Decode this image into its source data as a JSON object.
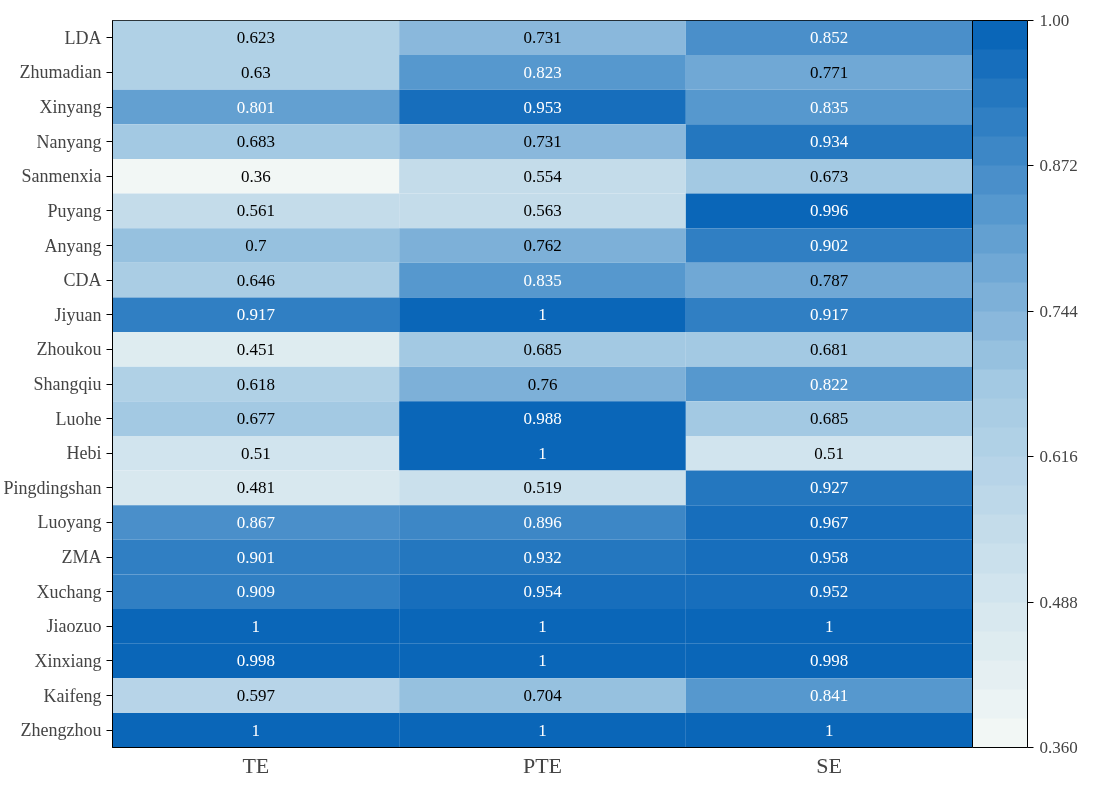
{
  "chart_data": {
    "type": "heatmap",
    "categories": [
      "TE",
      "PTE",
      "SE"
    ],
    "y_categories": [
      "LDA",
      "Zhumadian",
      "Xinyang",
      "Nanyang",
      "Sanmenxia",
      "Puyang",
      "Anyang",
      "CDA",
      "Jiyuan",
      "Zhoukou",
      "Shangqiu",
      "Luohe",
      "Hebi",
      "Pingdingshan",
      "Luoyang",
      "ZMA",
      "Xuchang",
      "Jiaozuo",
      "Xinxiang",
      "Kaifeng",
      "Zhengzhou"
    ],
    "cells": [
      [
        0.623,
        0.731,
        0.852
      ],
      [
        0.63,
        0.823,
        0.771
      ],
      [
        0.801,
        0.953,
        0.835
      ],
      [
        0.683,
        0.731,
        0.934
      ],
      [
        0.36,
        0.554,
        0.673
      ],
      [
        0.561,
        0.563,
        0.996
      ],
      [
        0.7,
        0.762,
        0.902
      ],
      [
        0.646,
        0.835,
        0.787
      ],
      [
        0.917,
        1,
        0.917
      ],
      [
        0.451,
        0.685,
        0.681
      ],
      [
        0.618,
        0.76,
        0.822
      ],
      [
        0.677,
        0.988,
        0.685
      ],
      [
        0.51,
        1,
        0.51
      ],
      [
        0.481,
        0.519,
        0.927
      ],
      [
        0.867,
        0.896,
        0.967
      ],
      [
        0.901,
        0.932,
        0.958
      ],
      [
        0.909,
        0.954,
        0.952
      ],
      [
        1,
        1,
        1
      ],
      [
        0.998,
        1,
        0.998
      ],
      [
        0.597,
        0.704,
        0.841
      ],
      [
        1,
        1,
        1
      ]
    ],
    "clim": [
      0.36,
      1.0
    ],
    "cticks": [
      {
        "value": 0.36,
        "label": "0.360"
      },
      {
        "value": 0.488,
        "label": "0.488"
      },
      {
        "value": 0.616,
        "label": "0.616"
      },
      {
        "value": 0.744,
        "label": "0.744"
      },
      {
        "value": 0.872,
        "label": "0.872"
      },
      {
        "value": 1.0,
        "label": "1.00"
      }
    ],
    "data_labels": true
  }
}
